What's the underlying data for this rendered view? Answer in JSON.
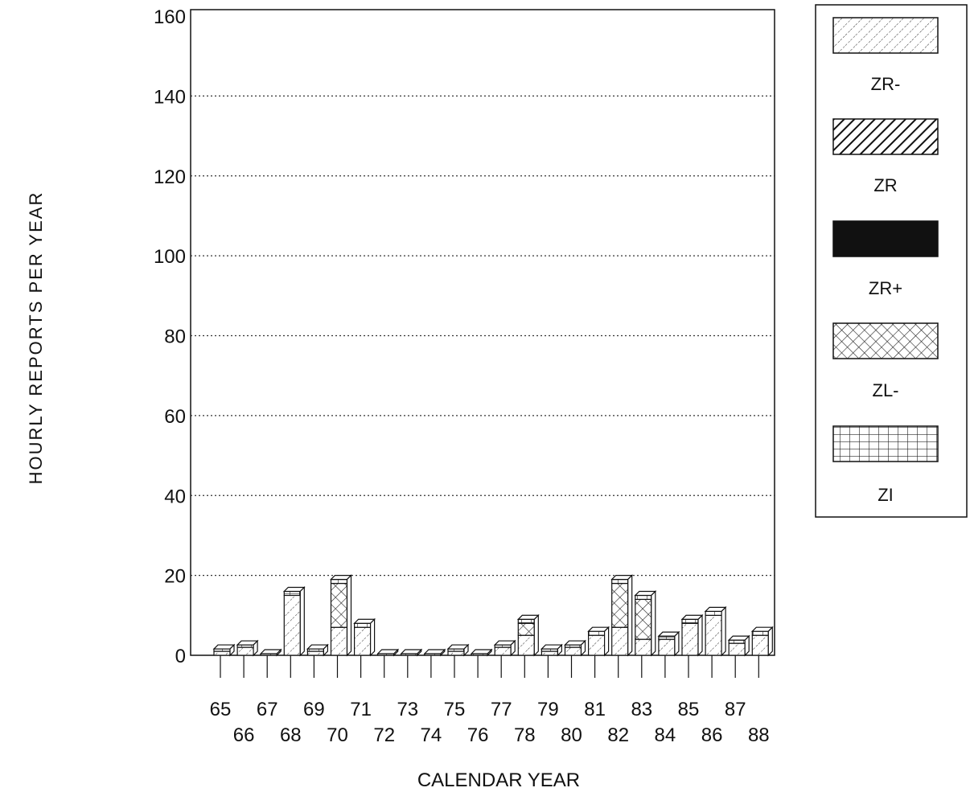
{
  "chart_data": {
    "type": "bar",
    "stacked": true,
    "ylabel": "HOURLY REPORTS PER YEAR",
    "xlabel": "CALENDAR YEAR",
    "ylim": [
      0,
      160
    ],
    "yticks": [
      0,
      20,
      40,
      60,
      80,
      100,
      120,
      140,
      160
    ],
    "grid": "dotted horizontal",
    "legend_position": "right",
    "categories": [
      "65",
      "66",
      "67",
      "68",
      "69",
      "70",
      "71",
      "72",
      "73",
      "74",
      "75",
      "76",
      "77",
      "78",
      "79",
      "80",
      "81",
      "82",
      "83",
      "84",
      "85",
      "86",
      "87",
      "88"
    ],
    "series": [
      {
        "name": "ZR-",
        "pattern": "light-hatch",
        "values": [
          1,
          2,
          0,
          15,
          1,
          7,
          7,
          0,
          0,
          0,
          1,
          0,
          2,
          5,
          1,
          2,
          5,
          7,
          4,
          4,
          8,
          10,
          3,
          5
        ]
      },
      {
        "name": "ZR",
        "pattern": "heavy-hatch",
        "values": [
          0,
          0,
          0,
          0,
          0,
          0,
          0,
          0,
          0,
          0,
          0,
          0,
          0,
          0,
          0,
          0,
          0,
          0,
          0,
          0,
          0,
          0,
          0,
          0
        ]
      },
      {
        "name": "ZR+",
        "pattern": "solid",
        "values": [
          0,
          0,
          0,
          0,
          0,
          0,
          0,
          0,
          0,
          0,
          0,
          0,
          0,
          0,
          0,
          0,
          0,
          0,
          0,
          0,
          0,
          0,
          0,
          0
        ]
      },
      {
        "name": "ZL-",
        "pattern": "crosshatch",
        "values": [
          0,
          0,
          0,
          0,
          0,
          11,
          0,
          0,
          0,
          0,
          0,
          0,
          0,
          3,
          0,
          0,
          0,
          11,
          10,
          0,
          0,
          0,
          0,
          0
        ]
      },
      {
        "name": "ZI",
        "pattern": "grid",
        "values": [
          0.6,
          0.6,
          0.4,
          1,
          0.6,
          1,
          1,
          0.4,
          0.4,
          0.4,
          0.6,
          0.4,
          0.6,
          1,
          0.6,
          0.6,
          1,
          1,
          1,
          0.8,
          1,
          1,
          0.8,
          1
        ]
      }
    ]
  }
}
